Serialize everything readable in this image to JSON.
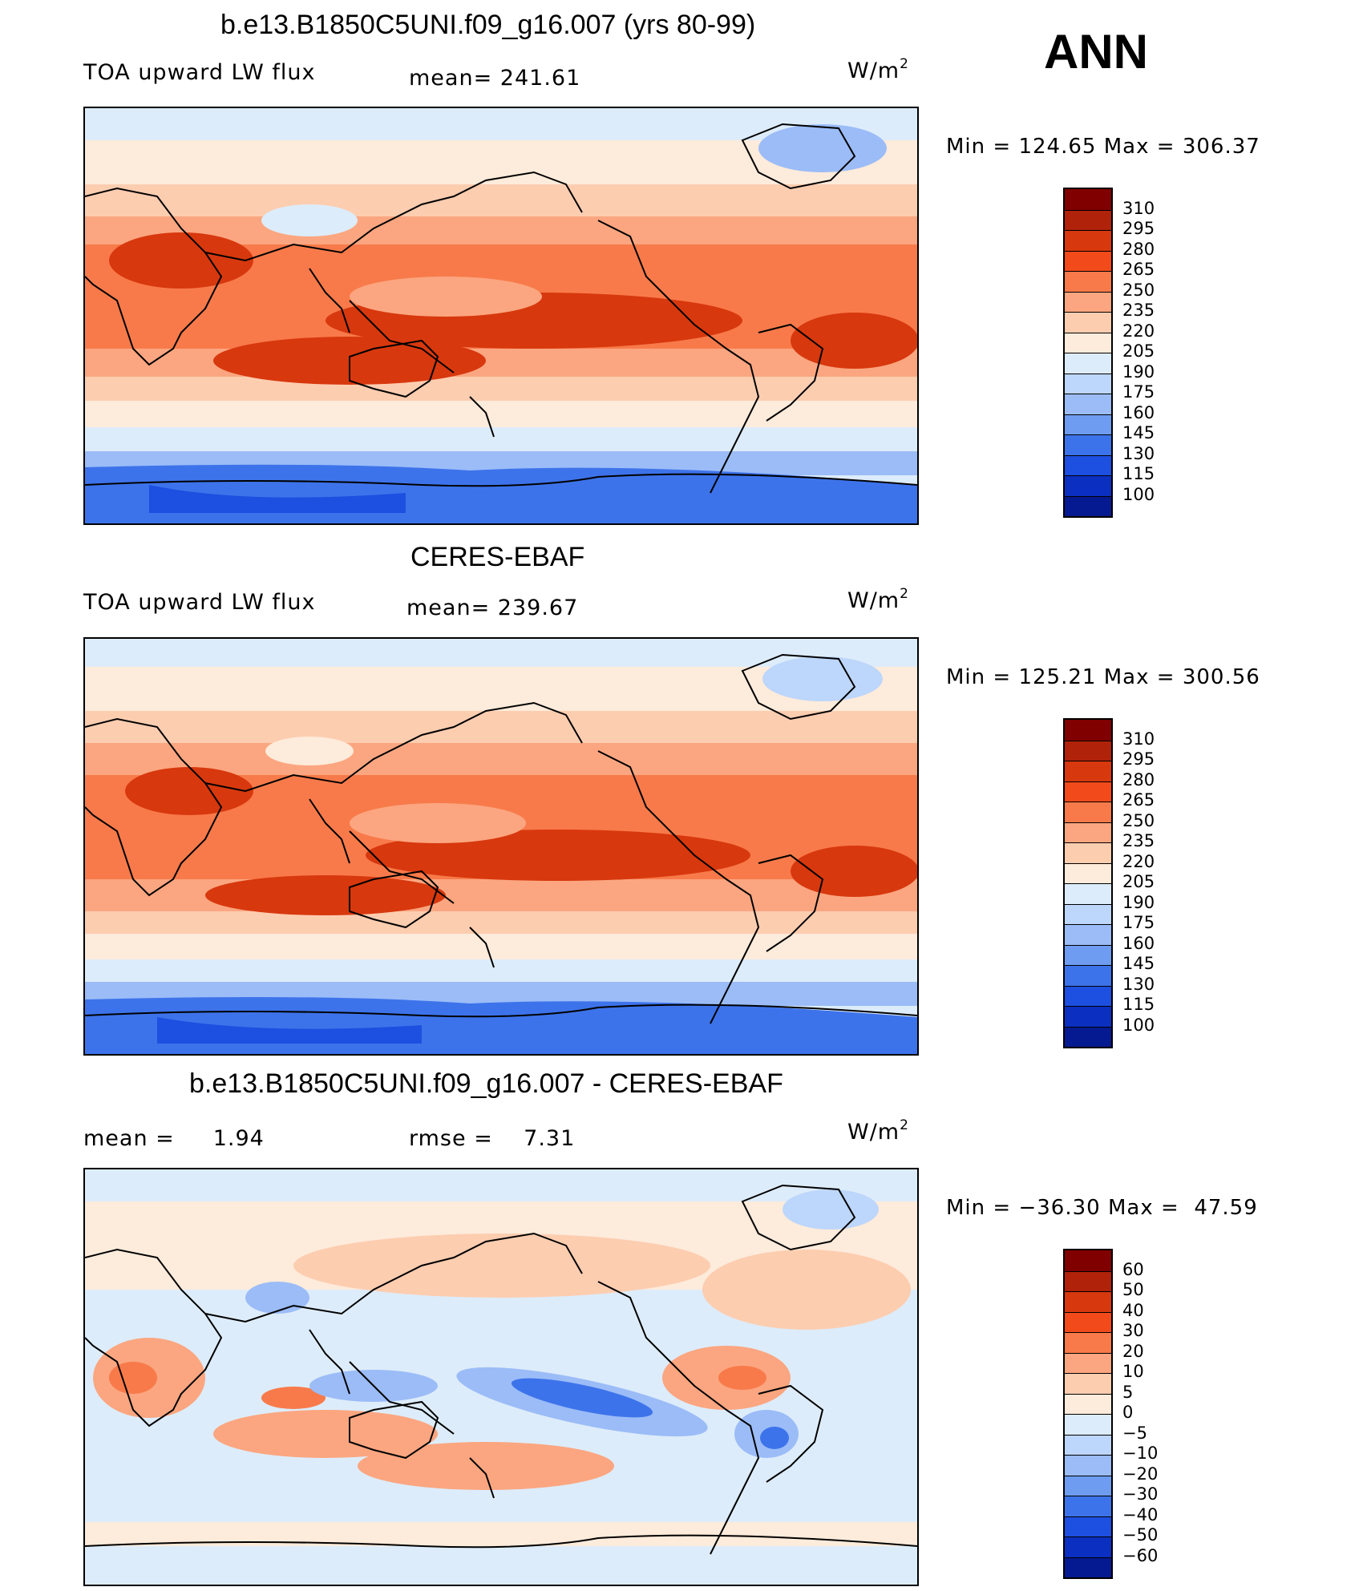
{
  "season": "ANN",
  "panels": [
    {
      "title": "b.e13.B1850C5UNI.f09_g16.007 (yrs 80-99)",
      "left_label": "TOA upward LW flux",
      "mean_label": "mean=",
      "mean_value": "241.61",
      "units_base": "W/m",
      "units_sup": "2",
      "min_label": "Min",
      "min_value": "124.65",
      "max_label": "Max",
      "max_value": "306.37"
    },
    {
      "title": "CERES-EBAF",
      "left_label": "TOA upward LW flux",
      "mean_label": "mean=",
      "mean_value": "239.67",
      "units_base": "W/m",
      "units_sup": "2",
      "min_label": "Min",
      "min_value": "125.21",
      "max_label": "Max",
      "max_value": "300.56"
    },
    {
      "title": "b.e13.B1850C5UNI.f09_g16.007 - CERES-EBAF",
      "mean_label": "mean =",
      "mean_value": "1.94",
      "rmse_label": "rmse =",
      "rmse_value": "7.31",
      "units_base": "W/m",
      "units_sup": "2",
      "min_label": "Min",
      "min_value": "−36.30",
      "max_label": "Max",
      "max_value": "47.59"
    }
  ],
  "chart_data": [
    {
      "type": "heatmap",
      "title": "b.e13.B1850C5UNI.f09_g16.007 (yrs 80-99)",
      "variable": "TOA upward LW flux",
      "units": "W/m2",
      "mean": 241.61,
      "min": 124.65,
      "max": 306.37,
      "colorbar_levels": [
        "310",
        "295",
        "280",
        "265",
        "250",
        "235",
        "220",
        "205",
        "190",
        "175",
        "160",
        "145",
        "130",
        "115",
        "100"
      ],
      "colorbar_colors": [
        "#800000",
        "#b0220a",
        "#d8380e",
        "#f24a1a",
        "#f87a4a",
        "#fba680",
        "#fdcdb0",
        "#fdebdb",
        "#ddecfa",
        "#bdd6fb",
        "#9bbcf7",
        "#6e9cf0",
        "#3d73ea",
        "#1d4fe0",
        "#0b2fc0",
        "#051a90"
      ]
    },
    {
      "type": "heatmap",
      "title": "CERES-EBAF",
      "variable": "TOA upward LW flux",
      "units": "W/m2",
      "mean": 239.67,
      "min": 125.21,
      "max": 300.56,
      "colorbar_levels": [
        "310",
        "295",
        "280",
        "265",
        "250",
        "235",
        "220",
        "205",
        "190",
        "175",
        "160",
        "145",
        "130",
        "115",
        "100"
      ],
      "colorbar_colors": [
        "#800000",
        "#b0220a",
        "#d8380e",
        "#f24a1a",
        "#f87a4a",
        "#fba680",
        "#fdcdb0",
        "#fdebdb",
        "#ddecfa",
        "#bdd6fb",
        "#9bbcf7",
        "#6e9cf0",
        "#3d73ea",
        "#1d4fe0",
        "#0b2fc0",
        "#051a90"
      ]
    },
    {
      "type": "heatmap",
      "title": "b.e13.B1850C5UNI.f09_g16.007 - CERES-EBAF",
      "units": "W/m2",
      "mean": 1.94,
      "rmse": 7.31,
      "min": -36.3,
      "max": 47.59,
      "colorbar_levels": [
        "60",
        "50",
        "40",
        "30",
        "20",
        "10",
        "5",
        "0",
        "−5",
        "−10",
        "−20",
        "−30",
        "−40",
        "−50",
        "−60"
      ],
      "colorbar_colors": [
        "#800000",
        "#b0220a",
        "#d8380e",
        "#f24a1a",
        "#f87a4a",
        "#fba680",
        "#fdcdb0",
        "#fdebdb",
        "#ddecfa",
        "#bdd6fb",
        "#9bbcf7",
        "#6e9cf0",
        "#3d73ea",
        "#1d4fe0",
        "#0b2fc0",
        "#051a90"
      ]
    }
  ]
}
